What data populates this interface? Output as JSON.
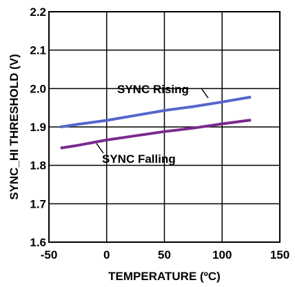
{
  "chart_data": {
    "type": "line",
    "xlabel": "TEMPERATURE (ºC)",
    "ylabel": "SYNC_HI  THRESHOLD (V)",
    "xlim": [
      -50,
      150
    ],
    "ylim": [
      1.6,
      2.2
    ],
    "xticks": [
      "-50",
      "0",
      "50",
      "100",
      "150"
    ],
    "yticks": [
      "1.6",
      "1.7",
      "1.8",
      "1.9",
      "2.0",
      "2.1",
      "2.2"
    ],
    "grid": true,
    "series": [
      {
        "name": "SYNC Rising",
        "color": "#5566cc",
        "x": [
          -40,
          -25,
          0,
          25,
          50,
          75,
          100,
          125
        ],
        "y": [
          1.9,
          1.907,
          1.917,
          1.93,
          1.943,
          1.953,
          1.965,
          1.978
        ]
      },
      {
        "name": "SYNC Falling",
        "color": "#7a2a8f",
        "x": [
          -40,
          -25,
          0,
          25,
          50,
          75,
          100,
          125
        ],
        "y": [
          1.845,
          1.852,
          1.866,
          1.877,
          1.888,
          1.897,
          1.908,
          1.918
        ]
      }
    ]
  }
}
